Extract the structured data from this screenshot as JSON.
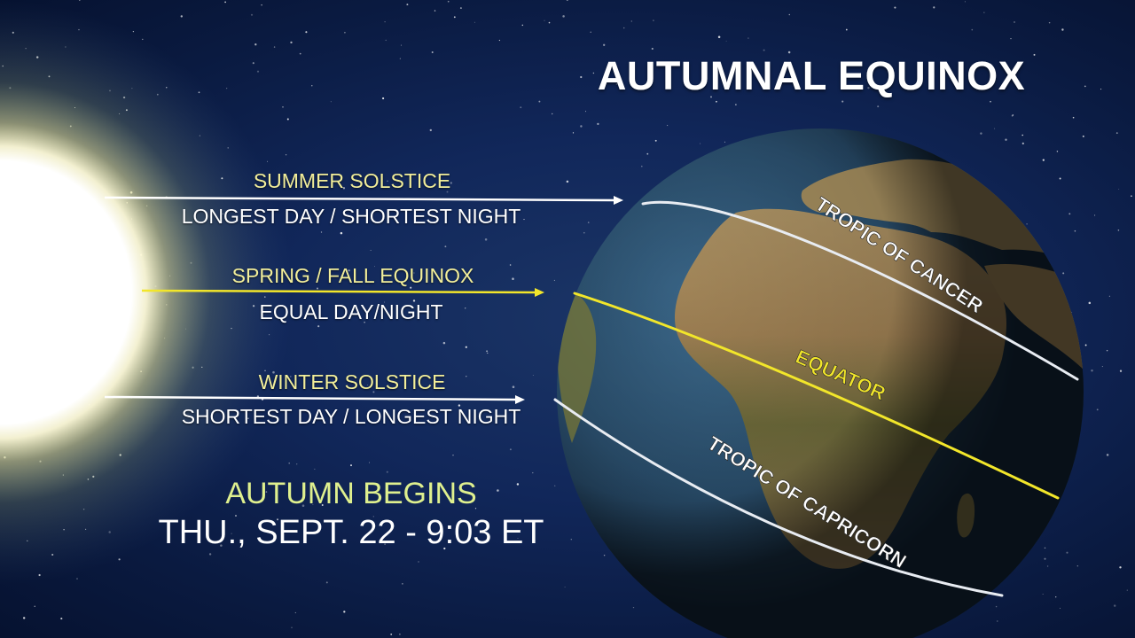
{
  "title": "AUTUMNAL EQUINOX",
  "rays": [
    {
      "heading": "SUMMER SOLSTICE",
      "subtext": "LONGEST DAY / SHORTEST NIGHT",
      "color": "#ffffff"
    },
    {
      "heading": "SPRING / FALL EQUINOX",
      "subtext": "EQUAL DAY/NIGHT",
      "color": "#f2e62a"
    },
    {
      "heading": "WINTER SOLSTICE",
      "subtext": "SHORTEST DAY / LONGEST NIGHT",
      "color": "#ffffff"
    }
  ],
  "globe_lines": {
    "tropic_of_cancer": "TROPIC OF CANCER",
    "equator": "EQUATOR",
    "tropic_of_capricorn": "TROPIC OF CAPRICORN"
  },
  "event": {
    "headline": "AUTUMN BEGINS",
    "date": "THU., SEPT. 22 - 9:03 ET"
  },
  "colors": {
    "heading_text": "#f2ee9a",
    "equator_line": "#f2e62a",
    "tropic_lines": "#e8ecf2",
    "space": "#11275a"
  }
}
